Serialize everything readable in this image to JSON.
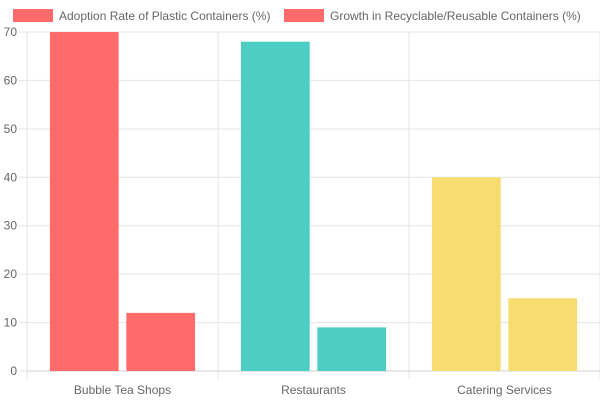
{
  "chart_data": {
    "type": "bar",
    "title": "",
    "xlabel": "",
    "ylabel": "",
    "categories": [
      "Bubble Tea Shops",
      "Restaurants",
      "Catering Services"
    ],
    "series": [
      {
        "name": "Adoption Rate of Plastic Containers (%)",
        "values": [
          70,
          68,
          40
        ]
      },
      {
        "name": "Growth in Recyclable/Reusable Containers (%)",
        "values": [
          12,
          9,
          15
        ]
      }
    ],
    "category_colors": [
      "#ff6b6b",
      "#4ecdc4",
      "#f7dc6f"
    ],
    "legend_color": "#ff6b6b",
    "ylim": [
      0,
      70
    ],
    "yticks": [
      0,
      10,
      20,
      30,
      40,
      50,
      60,
      70
    ],
    "grid": true,
    "legend_position": "top"
  }
}
